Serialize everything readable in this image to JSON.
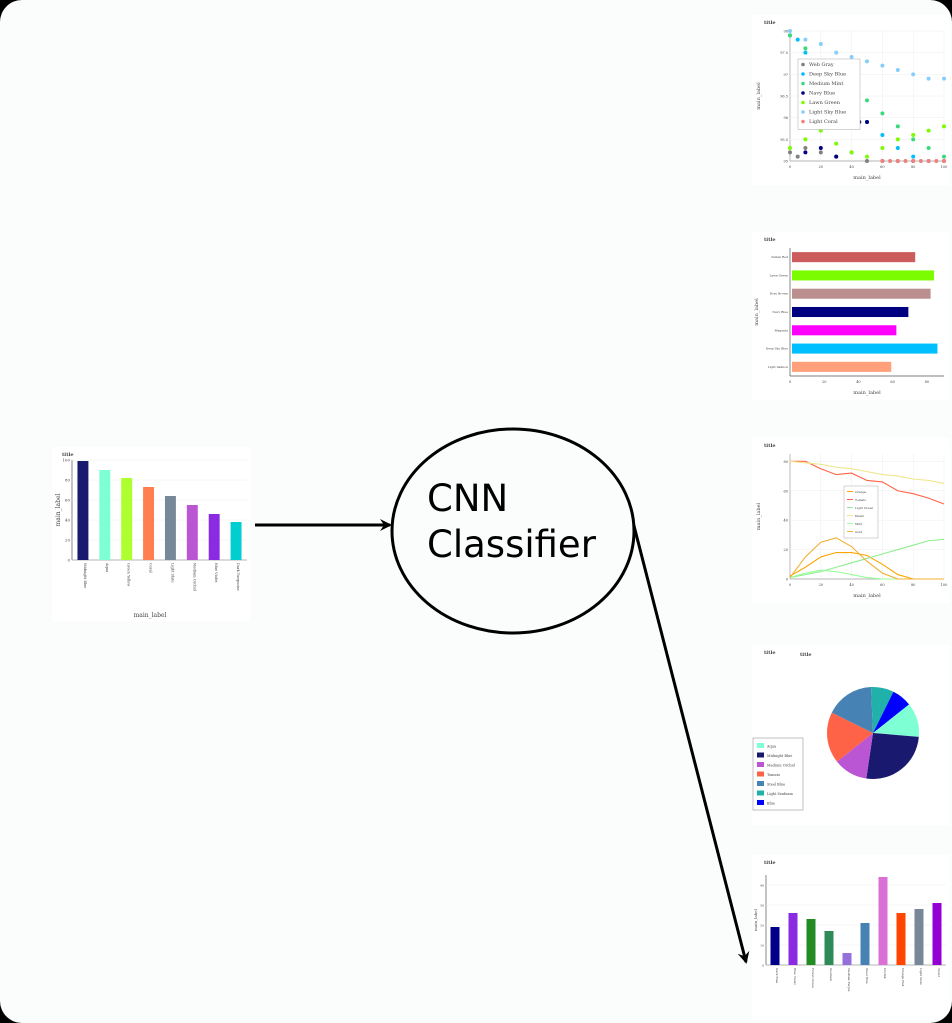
{
  "classifier": {
    "line1": "CNN",
    "line2": "Classifier"
  },
  "input_chart": {
    "type": "bar",
    "title": "title",
    "xlabel": "main_label",
    "ylabel": "main_label",
    "ylim": [
      0,
      100
    ],
    "yticks": [
      0,
      20,
      40,
      60,
      80,
      100
    ],
    "categories": [
      "Midnight Blue",
      "Aqua",
      "Green Yellow",
      "Coral",
      "Light Slate",
      "Medium Orchid",
      "Blue Violet",
      "Dark Turquoise"
    ],
    "values": [
      99,
      90,
      82,
      73,
      64,
      55,
      46,
      38
    ],
    "colors": [
      "#191970",
      "#7fffd4",
      "#adff2f",
      "#ff7f50",
      "#778899",
      "#ba55d3",
      "#8a2be2",
      "#00ced1"
    ]
  },
  "chart_data": [
    {
      "type": "scatter",
      "title": "title",
      "xlabel": "main_label",
      "ylabel": "main_label",
      "xlim": [
        0,
        100
      ],
      "ylim": [
        95,
        98
      ],
      "xticks": [
        0,
        20,
        40,
        60,
        80,
        100
      ],
      "yticks": [
        95,
        95.5,
        96,
        96.5,
        97,
        97.5,
        98
      ],
      "series": [
        {
          "name": "Web Gray",
          "color": "#808080",
          "x": [
            0,
            5,
            10,
            20,
            30,
            40,
            50,
            60,
            70,
            80,
            90,
            100
          ],
          "y": [
            95.2,
            95.1,
            95.3,
            95.2,
            95.1,
            95.2,
            95,
            95,
            95,
            95,
            95,
            95
          ]
        },
        {
          "name": "Deep Sky Blue",
          "color": "#00bfff",
          "x": [
            0,
            5,
            10,
            20,
            30,
            40,
            50,
            60,
            70,
            80
          ],
          "y": [
            97.9,
            97.8,
            97.5,
            97.1,
            96.7,
            96.3,
            95.9,
            95.6,
            95.3,
            95.1
          ]
        },
        {
          "name": "Medium Mint",
          "color": "#3cd97a",
          "x": [
            0,
            10,
            20,
            30,
            40,
            50,
            60,
            70,
            80,
            90,
            100
          ],
          "y": [
            97.9,
            97.6,
            97.3,
            97.0,
            96.7,
            96.4,
            96.1,
            95.8,
            95.5,
            95.3,
            95.1
          ]
        },
        {
          "name": "Navy Blue",
          "color": "#000080",
          "x": [
            10,
            20,
            30,
            40,
            45,
            50
          ],
          "y": [
            95.2,
            95.3,
            95.1,
            96.0,
            95.9,
            95.9
          ]
        },
        {
          "name": "Lawn Green",
          "color": "#7cfc00",
          "x": [
            0,
            10,
            20,
            30,
            40,
            50,
            60,
            70,
            80,
            90,
            100
          ],
          "y": [
            95.3,
            95.5,
            95.7,
            95.4,
            95.2,
            95.1,
            95.3,
            95.5,
            95.6,
            95.7,
            95.8
          ]
        },
        {
          "name": "Light Sky Blue",
          "color": "#87cefa",
          "x": [
            0,
            10,
            20,
            30,
            40,
            50,
            60,
            70,
            80,
            90,
            100
          ],
          "y": [
            98,
            97.8,
            97.7,
            97.5,
            97.4,
            97.3,
            97.2,
            97.1,
            97.0,
            96.9,
            96.9
          ]
        },
        {
          "name": "Light Coral",
          "color": "#f08080",
          "x": [
            60,
            65,
            70,
            75,
            80,
            85,
            90,
            95,
            100
          ],
          "y": [
            95,
            95,
            95,
            95,
            95,
            95,
            95,
            95,
            95
          ]
        }
      ]
    },
    {
      "type": "bar",
      "orientation": "horizontal",
      "title": "title",
      "xlabel": "main_label",
      "ylabel": "main_label",
      "xlim": [
        0,
        90
      ],
      "xticks": [
        0,
        20,
        40,
        60,
        80
      ],
      "categories": [
        "Indian Red",
        "Lawn Green",
        "Rosy Brown",
        "Navy Blue",
        "Magenta",
        "Deep Sky Blue",
        "Light Salmon"
      ],
      "values": [
        72,
        83,
        81,
        68,
        61,
        85,
        58
      ],
      "colors": [
        "#cd5c5c",
        "#7cfc00",
        "#bc8f8f",
        "#000080",
        "#ff00ff",
        "#00bfff",
        "#ffa07a"
      ]
    },
    {
      "type": "line",
      "title": "title",
      "xlabel": "main_label",
      "ylabel": "main_label",
      "xlim": [
        0,
        100
      ],
      "ylim": [
        0,
        85
      ],
      "xticks": [
        0,
        20,
        40,
        60,
        80,
        100
      ],
      "yticks": [
        0,
        20,
        40,
        60,
        80
      ],
      "series": [
        {
          "name": "Orange",
          "color": "#ffa500",
          "x": [
            0,
            10,
            20,
            30,
            40,
            50,
            60,
            70,
            80,
            90,
            100
          ],
          "y": [
            2,
            8,
            15,
            18,
            18,
            16,
            10,
            3,
            0,
            0,
            0
          ]
        },
        {
          "name": "Tomato",
          "color": "#ff6347",
          "x": [
            0,
            10,
            20,
            30,
            40,
            50,
            60,
            70,
            80,
            90,
            100
          ],
          "y": [
            80,
            80,
            75,
            71,
            72,
            67,
            66,
            60,
            58,
            55,
            51
          ]
        },
        {
          "name": "Light Green",
          "color": "#90ee90",
          "x": [
            0,
            10,
            20,
            30,
            40,
            50,
            60,
            70,
            80,
            90,
            100
          ],
          "y": [
            1,
            3,
            5,
            8,
            11,
            14,
            17,
            20,
            23,
            26,
            27
          ]
        },
        {
          "name": "Khaki",
          "color": "#f0e68c",
          "x": [
            0,
            10,
            20,
            30,
            40,
            50,
            60,
            70,
            80,
            90,
            100
          ],
          "y": [
            80,
            79,
            78,
            76,
            75,
            73,
            71,
            70,
            68,
            67,
            65
          ]
        },
        {
          "name": "Mint",
          "color": "#98ff98",
          "x": [
            0,
            10,
            20,
            30,
            40,
            50,
            60,
            70,
            80,
            90,
            100
          ],
          "y": [
            1,
            4,
            6,
            5,
            3,
            1,
            0,
            0,
            0,
            0,
            0
          ]
        },
        {
          "name": "Gold",
          "color": "#f0b030",
          "x": [
            0,
            10,
            20,
            30,
            40,
            50,
            60,
            70,
            80,
            90,
            100
          ],
          "y": [
            1,
            15,
            25,
            28,
            22,
            12,
            4,
            0,
            0,
            0,
            0
          ]
        }
      ]
    },
    {
      "type": "pie",
      "title": "title",
      "categories": [
        "Aqua",
        "Midnight Blue",
        "Medium Orchid",
        "Tomato",
        "Steel Blue",
        "Light Seafoam",
        "Blue"
      ],
      "values": [
        12,
        26,
        12,
        18,
        17,
        8,
        7
      ],
      "colors": [
        "#7fffd4",
        "#191970",
        "#ba55d3",
        "#ff6347",
        "#4682b4",
        "#20b2aa",
        "#0000ff"
      ]
    },
    {
      "type": "bar",
      "title": "title",
      "ylabel": "main_label",
      "ylim": [
        0,
        45
      ],
      "yticks": [
        0,
        10,
        20,
        30,
        40
      ],
      "categories": [
        "Dark Blue",
        "Blue Violet",
        "Forest Green",
        "Seafoam",
        "Medium Purple",
        "Steel Blue",
        "Orchid",
        "Orange Red",
        "Light Slate",
        "Violet"
      ],
      "values": [
        19,
        26,
        23,
        17,
        6,
        21,
        44,
        26,
        28,
        31
      ],
      "colors": [
        "#00008b",
        "#8a2be2",
        "#228b22",
        "#2e8b57",
        "#9370db",
        "#4682b4",
        "#da70d6",
        "#ff4500",
        "#778899",
        "#9400d3"
      ]
    }
  ]
}
